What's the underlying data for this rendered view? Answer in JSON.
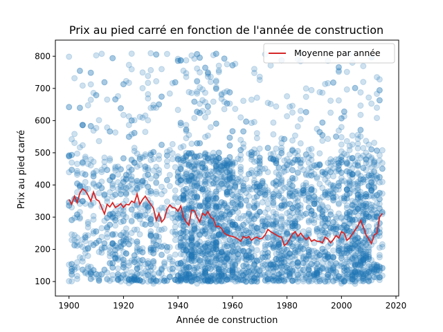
{
  "chart_data": {
    "type": "scatter",
    "title": "Prix au pied carré en fonction de l'année de construction",
    "xlabel": "Année de construction",
    "ylabel": "Prix au pied carré",
    "xlim": [
      1895,
      2021
    ],
    "ylim": [
      55,
      850
    ],
    "xticks": [
      1900,
      1920,
      1940,
      1960,
      1980,
      2000,
      2020
    ],
    "yticks": [
      100,
      200,
      300,
      400,
      500,
      600,
      700,
      800
    ],
    "grid": false,
    "legend_position": "top-right",
    "colors": {
      "scatter": "#1f77b4",
      "mean_line": "#d62728"
    },
    "series": [
      {
        "kind": "scatter",
        "x_range": [
          1900,
          2015
        ],
        "y_range": [
          90,
          810
        ],
        "dense_band": [
          100,
          500
        ]
      },
      {
        "kind": "line",
        "name": "Moyenne par année",
        "x": [
          1900,
          1901,
          1902,
          1903,
          1904,
          1905,
          1906,
          1907,
          1908,
          1909,
          1910,
          1911,
          1912,
          1913,
          1914,
          1915,
          1916,
          1917,
          1918,
          1919,
          1920,
          1921,
          1922,
          1923,
          1924,
          1925,
          1926,
          1927,
          1928,
          1929,
          1930,
          1931,
          1932,
          1933,
          1934,
          1935,
          1936,
          1937,
          1938,
          1939,
          1940,
          1941,
          1942,
          1943,
          1944,
          1945,
          1946,
          1947,
          1948,
          1949,
          1950,
          1951,
          1952,
          1953,
          1954,
          1955,
          1956,
          1957,
          1958,
          1959,
          1960,
          1961,
          1962,
          1963,
          1964,
          1965,
          1966,
          1967,
          1968,
          1969,
          1970,
          1971,
          1972,
          1973,
          1974,
          1975,
          1976,
          1977,
          1978,
          1979,
          1980,
          1981,
          1982,
          1983,
          1984,
          1985,
          1986,
          1987,
          1988,
          1989,
          1990,
          1991,
          1992,
          1993,
          1994,
          1995,
          1996,
          1997,
          1998,
          1999,
          2000,
          2001,
          2002,
          2003,
          2004,
          2005,
          2006,
          2007,
          2008,
          2009,
          2010,
          2011,
          2012,
          2013,
          2014,
          2015
        ],
        "y": [
          355,
          340,
          365,
          345,
          375,
          388,
          382,
          368,
          350,
          378,
          355,
          350,
          330,
          310,
          340,
          332,
          345,
          330,
          335,
          342,
          330,
          340,
          338,
          350,
          345,
          372,
          340,
          355,
          365,
          352,
          340,
          328,
          290,
          312,
          285,
          295,
          325,
          338,
          330,
          328,
          318,
          335,
          300,
          285,
          275,
          322,
          320,
          300,
          285,
          312,
          305,
          318,
          300,
          295,
          270,
          272,
          265,
          250,
          245,
          242,
          240,
          237,
          232,
          225,
          240,
          235,
          240,
          228,
          235,
          238,
          232,
          235,
          245,
          262,
          255,
          250,
          245,
          240,
          238,
          212,
          218,
          232,
          248,
          255,
          240,
          250,
          240,
          230,
          238,
          225,
          230,
          225,
          225,
          220,
          238,
          232,
          220,
          230,
          243,
          235,
          255,
          250,
          228,
          235,
          248,
          260,
          272,
          290,
          270,
          245,
          232,
          218,
          245,
          250,
          300,
          312
        ]
      }
    ]
  }
}
